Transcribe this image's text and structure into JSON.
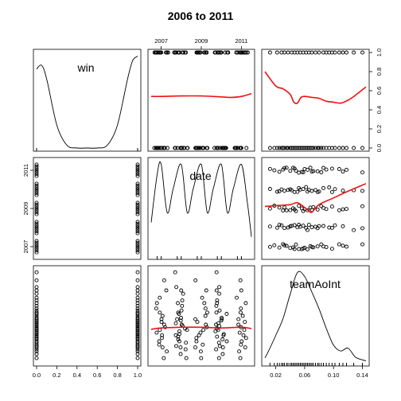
{
  "chart_data": {
    "type": "scatter",
    "title": "2006 to 2011",
    "variables": [
      "win",
      "date",
      "teamAoInt"
    ],
    "axes": {
      "win": {
        "range": [
          0,
          1
        ],
        "ticks": [
          "0.0",
          "0.2",
          "0.4",
          "0.6",
          "0.8",
          "1.0"
        ]
      },
      "date": {
        "range": [
          2006.5,
          2011.5
        ],
        "ticks": [
          "2007",
          "2009",
          "2011"
        ]
      },
      "teamAoInt": {
        "range": [
          0.005,
          0.145
        ],
        "ticks": [
          "0.02",
          "0.06",
          "0.10",
          "0.14"
        ]
      }
    },
    "density": {
      "win": {
        "x": [
          0,
          0.05,
          0.1,
          0.2,
          0.3,
          0.4,
          0.5,
          0.6,
          0.7,
          0.8,
          0.9,
          0.95,
          1.0
        ],
        "y": [
          0.86,
          0.9,
          0.75,
          0.25,
          0.03,
          0.0,
          0.0,
          0.0,
          0.03,
          0.25,
          0.75,
          0.95,
          1.0
        ]
      },
      "date": {
        "x": [
          2006.5,
          2006.8,
          2007.0,
          2007.3,
          2007.6,
          2008.0,
          2008.3,
          2008.6,
          2009.0,
          2009.3,
          2009.6,
          2010.0,
          2010.3,
          2010.6,
          2011.0,
          2011.3,
          2011.5
        ],
        "y": [
          0.35,
          0.85,
          0.95,
          0.45,
          0.7,
          0.95,
          0.45,
          0.7,
          0.95,
          0.45,
          0.7,
          0.95,
          0.45,
          0.7,
          0.95,
          0.55,
          0.2
        ]
      },
      "teamAoInt": {
        "x": [
          0.005,
          0.01,
          0.02,
          0.03,
          0.04,
          0.05,
          0.06,
          0.07,
          0.08,
          0.09,
          0.1,
          0.11,
          0.12,
          0.13,
          0.14,
          0.145
        ],
        "y": [
          0.05,
          0.12,
          0.28,
          0.45,
          0.7,
          0.92,
          0.88,
          0.72,
          0.55,
          0.35,
          0.18,
          0.12,
          0.15,
          0.06,
          0.03,
          0.02
        ]
      }
    },
    "smoothers": {
      "date~win": {
        "x": [
          2006.5,
          2007,
          2008,
          2009,
          2010,
          2010.5,
          2011,
          2011.5
        ],
        "y": [
          0.54,
          0.54,
          0.545,
          0.545,
          0.535,
          0.53,
          0.54,
          0.57
        ]
      },
      "win~teamAoInt": {
        "x": [
          0.005,
          0.02,
          0.03,
          0.04,
          0.045,
          0.05,
          0.055,
          0.06,
          0.07,
          0.08,
          0.09,
          0.1,
          0.11,
          0.12,
          0.13,
          0.145
        ],
        "y": [
          0.8,
          0.65,
          0.62,
          0.56,
          0.48,
          0.47,
          0.53,
          0.54,
          0.53,
          0.52,
          0.49,
          0.48,
          0.47,
          0.5,
          0.55,
          0.64
        ]
      },
      "date~teamAoInt": {
        "x": [
          0.005,
          0.02,
          0.04,
          0.05,
          0.06,
          0.065,
          0.07,
          0.08,
          0.1,
          0.12,
          0.145
        ],
        "y": [
          2009.1,
          2009.15,
          2009.2,
          2009.3,
          2009.05,
          2008.9,
          2008.8,
          2009.2,
          2009.55,
          2009.9,
          2010.3
        ]
      },
      "teamAoInt~date": {
        "x": [
          2006.5,
          2007,
          2008,
          2009,
          2010,
          2011,
          2011.5
        ],
        "y": [
          0.055,
          0.057,
          0.058,
          0.058,
          0.057,
          0.058,
          0.056
        ]
      }
    },
    "categories_date": [
      2007,
      2008,
      2009,
      2010,
      2011
    ],
    "win_values": [
      0,
      1
    ],
    "teamAoInt_obs": [
      0.012,
      0.018,
      0.022,
      0.025,
      0.028,
      0.03,
      0.032,
      0.035,
      0.037,
      0.04,
      0.042,
      0.044,
      0.046,
      0.048,
      0.05,
      0.052,
      0.054,
      0.056,
      0.058,
      0.06,
      0.062,
      0.064,
      0.066,
      0.068,
      0.07,
      0.072,
      0.075,
      0.078,
      0.08,
      0.083,
      0.086,
      0.09,
      0.094,
      0.098,
      0.102,
      0.108,
      0.113,
      0.118,
      0.128,
      0.14
    ]
  }
}
